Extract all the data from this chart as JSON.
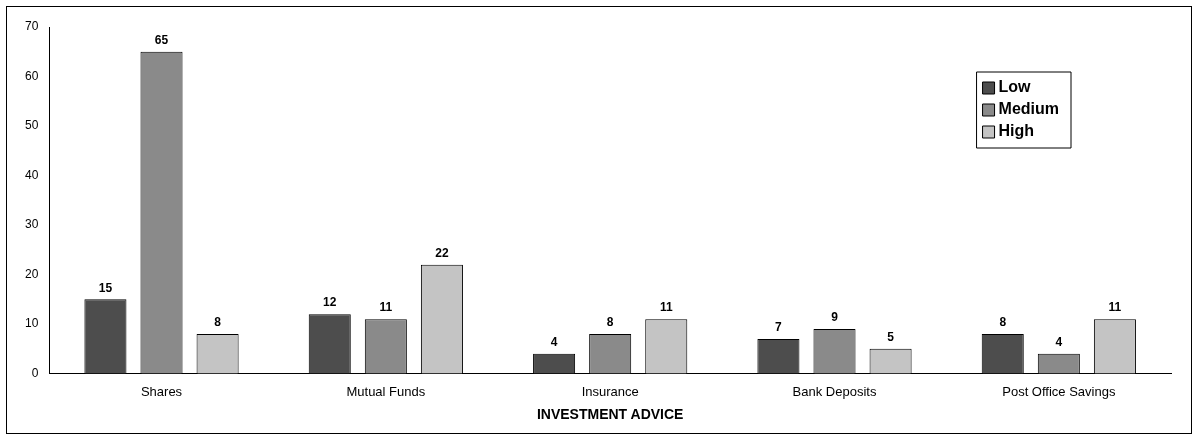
{
  "chart_data": {
    "type": "bar",
    "xlabel": "INVESTMENT ADVICE",
    "categories": [
      "Shares",
      "Mutual Funds",
      "Insurance",
      "Bank Deposits",
      "Post Office Savings"
    ],
    "series": [
      {
        "name": "Low",
        "color": "#4d4d4d",
        "values": [
          15,
          12,
          4,
          7,
          8
        ]
      },
      {
        "name": "Medium",
        "color": "#8a8a8a",
        "values": [
          65,
          11,
          8,
          9,
          4
        ]
      },
      {
        "name": "High",
        "color": "#c4c4c4",
        "values": [
          8,
          22,
          11,
          5,
          11
        ]
      }
    ],
    "ylim": [
      0,
      70
    ],
    "yticks": [
      0,
      10,
      20,
      30,
      40,
      50,
      60,
      70
    ],
    "grid": false,
    "legend": "top right",
    "data_labels": true
  }
}
